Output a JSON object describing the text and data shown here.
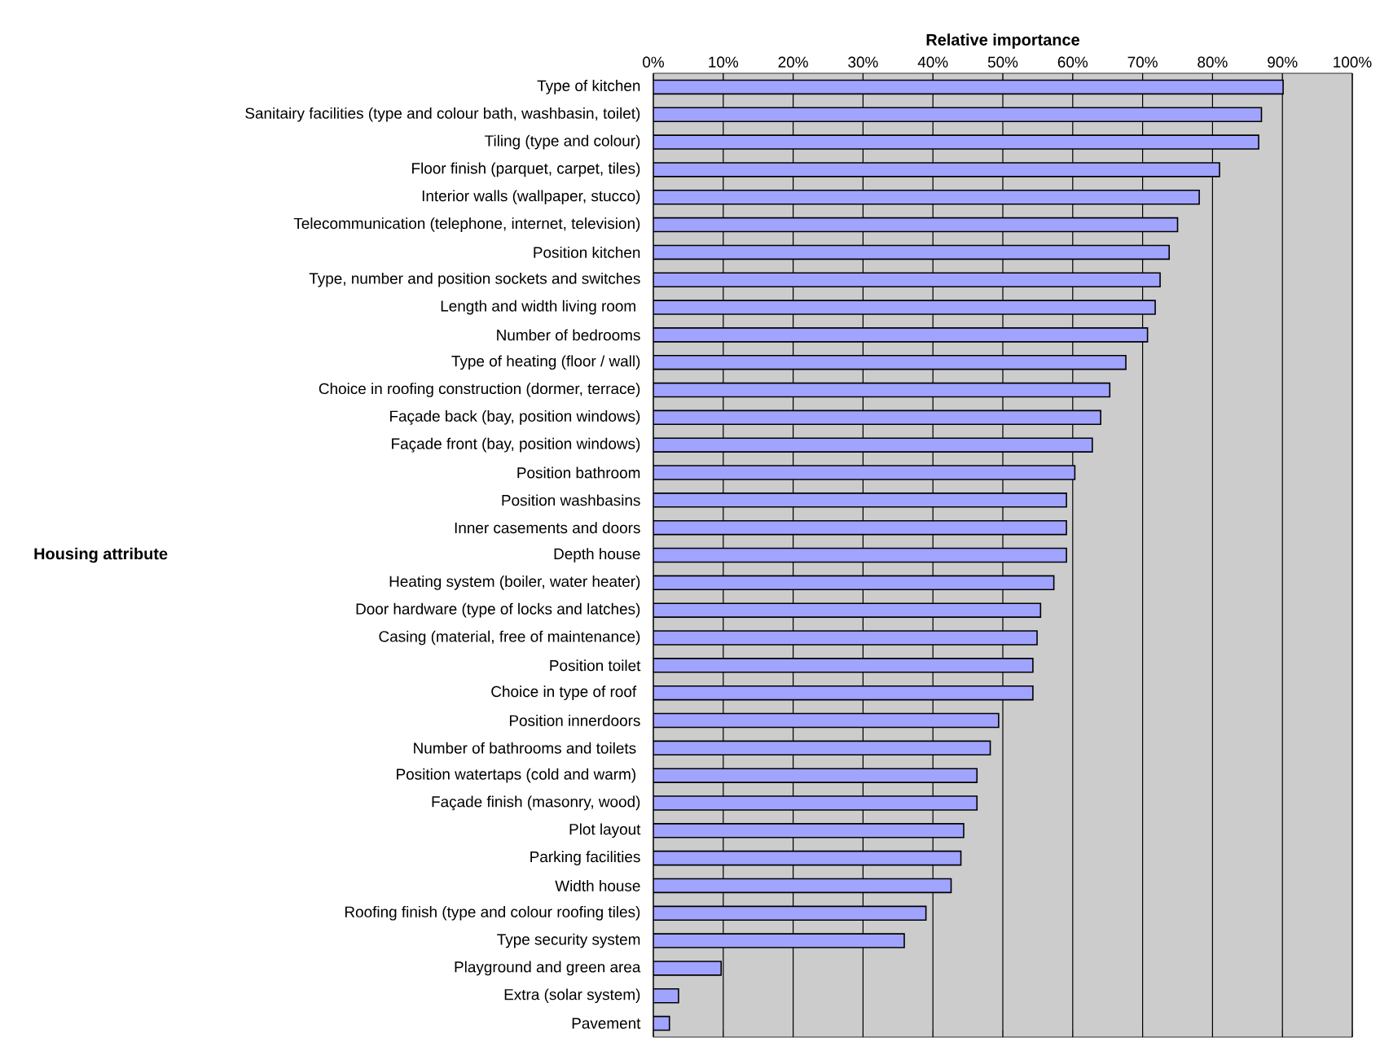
{
  "chart_data": {
    "type": "bar",
    "orientation": "horizontal",
    "xlabel": "Relative importance",
    "ylabel": "Housing attribute",
    "categories": [
      "Type of kitchen",
      "Sanitairy facilities (type and colour bath, washbasin, toilet)",
      "Tiling (type and colour)",
      "Floor finish (parquet, carpet, tiles)",
      "Interior walls (wallpaper,  stucco)",
      "Telecommunication (telephone, internet, television)",
      "Position kitchen",
      "Type, number and position sockets and switches",
      "Length and width living room ",
      "Number of bedrooms",
      "Type of heating (floor / wall)",
      "Choice in roofing construction (dormer, terrace)",
      "Façade back (bay, position windows)",
      "Façade front (bay, position windows)",
      "Position bathroom",
      "Position washbasins",
      "Inner casements and doors",
      "Depth house",
      "Heating system (boiler, water heater)",
      "Door hardware (type of locks and latches)",
      "Casing (material, free of maintenance)",
      "Position toilet",
      "Choice in type of roof ",
      "Position innerdoors",
      "Number of bathrooms and toilets ",
      "Position watertaps (cold and warm) ",
      "Façade finish (masonry, wood)",
      "Plot layout",
      "Parking facilities",
      "Width house",
      "Roofing finish (type and colour roofing tiles)",
      "Type security system",
      "Playground and green area",
      "Extra (solar system)",
      "Pavement"
    ],
    "values": [
      90.1,
      87.0,
      86.6,
      81.0,
      78.1,
      75.0,
      73.8,
      72.5,
      71.8,
      70.7,
      67.6,
      65.3,
      64.0,
      62.8,
      60.3,
      59.1,
      59.1,
      59.1,
      57.3,
      55.4,
      54.9,
      54.3,
      54.3,
      49.4,
      48.2,
      46.3,
      46.3,
      44.4,
      44.0,
      42.6,
      39.0,
      35.9,
      9.7,
      3.6,
      2.3
    ],
    "color": "#a0a4ff",
    "xlim": [
      0,
      100
    ],
    "xticks": [
      {
        "value": 0,
        "label": "0%"
      },
      {
        "value": 10,
        "label": "10%"
      },
      {
        "value": 20,
        "label": "20%"
      },
      {
        "value": 30,
        "label": "30%"
      },
      {
        "value": 40,
        "label": "40%"
      },
      {
        "value": 50,
        "label": "50%"
      },
      {
        "value": 60,
        "label": "60%"
      },
      {
        "value": 70,
        "label": "70%"
      },
      {
        "value": 80,
        "label": "80%"
      },
      {
        "value": 90,
        "label": "90%"
      },
      {
        "value": 100,
        "label": "100%"
      }
    ],
    "grid": "x"
  }
}
